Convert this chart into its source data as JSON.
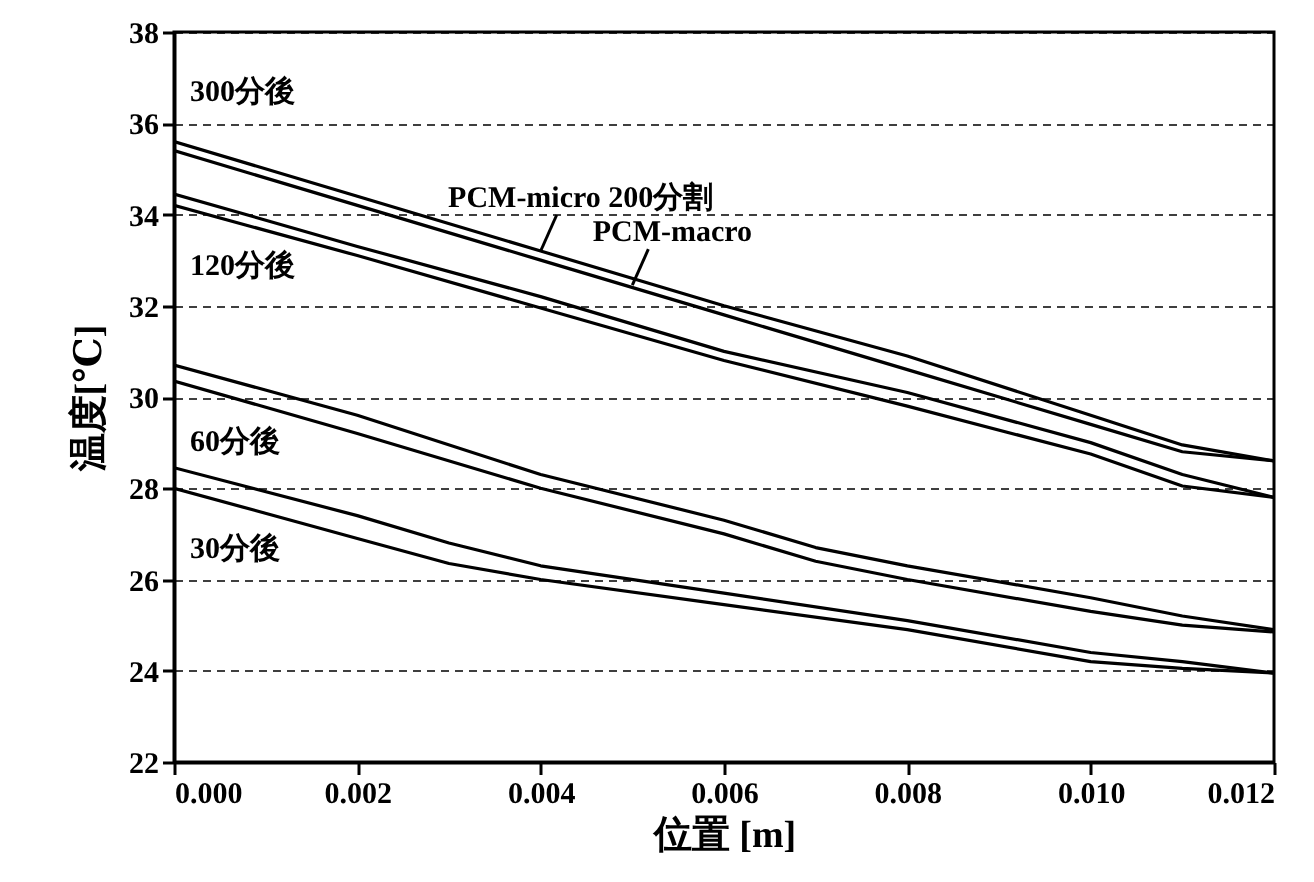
{
  "chart_data": {
    "type": "line",
    "xlabel": "位置 [m]",
    "ylabel": "温度[℃]",
    "xlim": [
      0,
      0.012
    ],
    "ylim": [
      22,
      38
    ],
    "xticks": [
      {
        "value": 0,
        "label": "0.000"
      },
      {
        "value": 0.002,
        "label": "0.002"
      },
      {
        "value": 0.004,
        "label": "0.004"
      },
      {
        "value": 0.006,
        "label": "0.006"
      },
      {
        "value": 0.008,
        "label": "0.008"
      },
      {
        "value": 0.01,
        "label": "0.010"
      },
      {
        "value": 0.012,
        "label": "0.012"
      }
    ],
    "yticks": [
      22,
      24,
      26,
      28,
      30,
      32,
      34,
      36,
      38
    ],
    "grid": "y",
    "line_style": "solid",
    "marker": "none",
    "x": [
      0,
      0.002,
      0.004,
      0.006,
      0.008,
      0.01,
      0.011,
      0.012
    ],
    "series": [
      {
        "color": "#000000",
        "values": [
          35.6,
          34.4,
          33.2,
          32.0,
          30.9,
          29.6,
          28.95,
          28.6
        ]
      },
      {
        "color": "#000000",
        "values": [
          35.4,
          34.2,
          33.0,
          31.8,
          30.6,
          29.4,
          28.8,
          28.6
        ]
      },
      {
        "color": "#000000",
        "values": [
          34.45,
          33.3,
          32.2,
          31.0,
          30.1,
          29.0,
          28.3,
          27.8
        ]
      },
      {
        "color": "#000000",
        "values": [
          34.2,
          33.1,
          31.95,
          30.8,
          29.8,
          28.75,
          28.05,
          27.8
        ]
      },
      {
        "color": "#000000",
        "x": [
          0,
          0.002,
          0.004,
          0.006,
          0.007,
          0.008,
          0.01,
          0.011,
          0.012
        ],
        "values": [
          30.7,
          29.6,
          28.3,
          27.3,
          26.7,
          26.3,
          25.6,
          25.2,
          24.9
        ]
      },
      {
        "color": "#000000",
        "x": [
          0,
          0.002,
          0.004,
          0.006,
          0.007,
          0.008,
          0.01,
          0.011,
          0.012
        ],
        "values": [
          30.35,
          29.2,
          28.0,
          27.0,
          26.4,
          26.0,
          25.3,
          25.0,
          24.85
        ]
      },
      {
        "color": "#000000",
        "x": [
          0,
          0.002,
          0.003,
          0.004,
          0.006,
          0.008,
          0.01,
          0.011,
          0.012
        ],
        "values": [
          28.45,
          27.4,
          26.8,
          26.3,
          25.7,
          25.1,
          24.4,
          24.2,
          23.95
        ]
      },
      {
        "color": "#000000",
        "x": [
          0,
          0.002,
          0.003,
          0.004,
          0.006,
          0.008,
          0.01,
          0.011,
          0.012
        ],
        "values": [
          28.0,
          26.9,
          26.35,
          26.0,
          25.45,
          24.9,
          24.2,
          24.05,
          23.95
        ]
      }
    ],
    "annotations": [
      "300分後",
      "120分後",
      "60分後",
      "30分後",
      {
        "text": "PCM-micro 200分割",
        "x": 0.004,
        "y": 33.2
      },
      {
        "text": "PCM-macro",
        "x": 0.005,
        "y": 32.45
      }
    ]
  }
}
